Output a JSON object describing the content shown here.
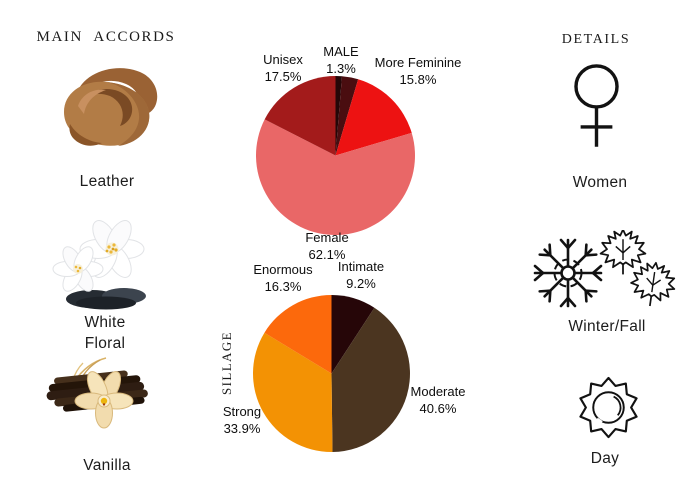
{
  "page": {
    "background": "#ffffff",
    "text_color": "#141414"
  },
  "left_panel": {
    "title": "MAIN ACCORDS",
    "items": [
      {
        "label": "Leather",
        "image": "rolled-leather-photo"
      },
      {
        "label": "White Floral",
        "label_lines": [
          "White",
          "Floral"
        ],
        "image": "white-jasmine-flowers-on-stones-photo"
      },
      {
        "label": "Vanilla",
        "image": "vanilla-orchid-with-pods-photo"
      }
    ]
  },
  "right_panel": {
    "title": "DETAILS",
    "items": [
      {
        "label": "Women",
        "icon": "female-gender-symbol"
      },
      {
        "label": "Winter/Fall",
        "icon": "snowflake-and-maple-leaves"
      },
      {
        "label": "Day",
        "icon": "sun"
      }
    ]
  },
  "chart_data": [
    {
      "type": "pie",
      "name": "gender",
      "direction": "clockwise",
      "start_angle_deg": 0,
      "slices": [
        {
          "label": "MALE",
          "value": 1.3,
          "pct_text": "1.3%",
          "color": "#240708"
        },
        {
          "label": "",
          "value": 3.3,
          "pct_text": "",
          "color": "#4a0d10"
        },
        {
          "label": "More Feminine",
          "value": 15.8,
          "pct_text": "15.8%",
          "color": "#ed1212"
        },
        {
          "label": "Female",
          "value": 62.1,
          "pct_text": "62.1%",
          "color": "#e96767"
        },
        {
          "label": "Unisex",
          "value": 17.5,
          "pct_text": "17.5%",
          "color": "#a31b1b"
        }
      ]
    },
    {
      "type": "pie",
      "name": "sillage",
      "axis_label": "SILLAGE",
      "direction": "clockwise",
      "start_angle_deg": 0,
      "slices": [
        {
          "label": "Intimate",
          "value": 9.2,
          "pct_text": "9.2%",
          "color": "#260608"
        },
        {
          "label": "Moderate",
          "value": 40.6,
          "pct_text": "40.6%",
          "color": "#4b3520"
        },
        {
          "label": "Strong",
          "value": 33.9,
          "pct_text": "33.9%",
          "color": "#f39204"
        },
        {
          "label": "Enormous",
          "value": 16.3,
          "pct_text": "16.3%",
          "color": "#fc690c"
        }
      ]
    }
  ]
}
